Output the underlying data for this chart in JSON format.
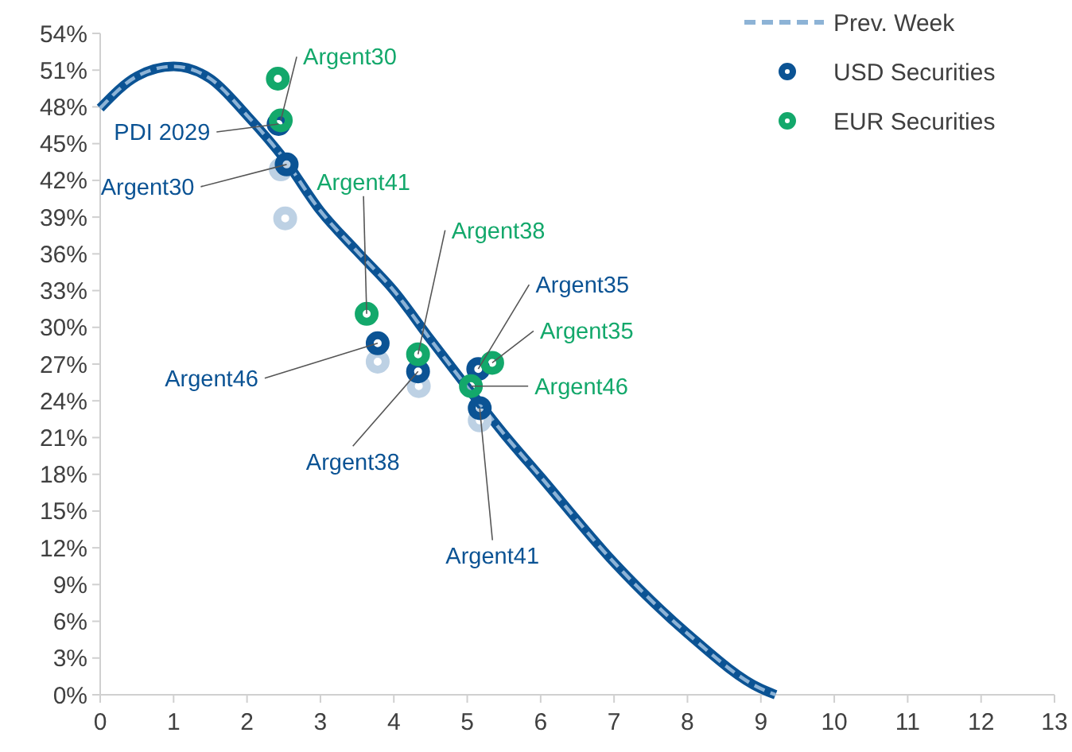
{
  "chart_data": {
    "type": "scatter",
    "xlim": [
      0,
      13
    ],
    "ylim": [
      0,
      54
    ],
    "xticks": [
      0,
      1,
      2,
      3,
      4,
      5,
      6,
      7,
      8,
      9,
      10,
      11,
      12,
      13
    ],
    "yticks": [
      {
        "value": 0,
        "label": "0%"
      },
      {
        "value": 3,
        "label": "3%"
      },
      {
        "value": 6,
        "label": "6%"
      },
      {
        "value": 9,
        "label": "9%"
      },
      {
        "value": 12,
        "label": "12%"
      },
      {
        "value": 15,
        "label": "15%"
      },
      {
        "value": 18,
        "label": "18%"
      },
      {
        "value": 21,
        "label": "21%"
      },
      {
        "value": 24,
        "label": "24%"
      },
      {
        "value": 27,
        "label": "27%"
      },
      {
        "value": 30,
        "label": "30%"
      },
      {
        "value": 33,
        "label": "33%"
      },
      {
        "value": 36,
        "label": "36%"
      },
      {
        "value": 39,
        "label": "39%"
      },
      {
        "value": 42,
        "label": "42%"
      },
      {
        "value": 45,
        "label": "45%"
      },
      {
        "value": 48,
        "label": "48%"
      },
      {
        "value": 51,
        "label": "51%"
      },
      {
        "value": 54,
        "label": "54%"
      }
    ],
    "grid": false,
    "legend": "top right",
    "marker": "circle",
    "series": [
      {
        "type": "line",
        "color": "#0b5394",
        "line_style": "solid",
        "marker": "none",
        "x": [
          0,
          0.5,
          1,
          1.5,
          2,
          2.5,
          3,
          3.5,
          4,
          4.5,
          5,
          5.5,
          6,
          7,
          8,
          9,
          9.2
        ],
        "values": [
          47.9,
          50.5,
          51.3,
          50.3,
          47.3,
          43.8,
          39.5,
          36.2,
          33,
          29,
          25.1,
          21.3,
          17.8,
          10.8,
          5,
          0.5,
          0
        ]
      },
      {
        "type": "line",
        "name": "Prev. Week",
        "color": "#8db3d6",
        "line_style": "dashed",
        "marker": "none",
        "x": [
          0,
          0.5,
          1,
          1.5,
          2,
          2.5,
          3,
          3.5,
          4,
          4.5,
          5,
          5.5,
          6,
          7,
          8,
          9,
          9.2
        ],
        "values": [
          47.9,
          50.5,
          51.3,
          50.3,
          47.3,
          43.8,
          39.5,
          36.2,
          33,
          29,
          25.1,
          21.3,
          17.8,
          10.8,
          5,
          0.5,
          0
        ]
      },
      {
        "color": "#bdd1e4",
        "x": [
          2.46,
          2.52,
          3.78,
          4.34,
          5.17
        ],
        "values": [
          42.9,
          38.9,
          27.2,
          25.2,
          22.4
        ]
      },
      {
        "name": "USD Securities",
        "color": "#0b5394",
        "x": [
          2.43,
          2.54,
          3.78,
          4.33,
          5.15,
          5.17
        ],
        "values": [
          46.6,
          43.3,
          28.7,
          26.4,
          26.6,
          23.4
        ],
        "value_labels": [
          "PDI 2029",
          "Argent30",
          "Argent46",
          "Argent38",
          "Argent35",
          "Argent41"
        ]
      },
      {
        "name": "EUR Securities",
        "color": "#13a86b",
        "x": [
          2.42,
          2.46,
          3.63,
          4.33,
          5.34,
          5.05
        ],
        "values": [
          50.3,
          46.9,
          31.1,
          27.8,
          27.1,
          25.2
        ],
        "value_labels": [
          null,
          "Argent30",
          "Argent41",
          "Argent38",
          "Argent35",
          "Argent46"
        ]
      }
    ]
  }
}
